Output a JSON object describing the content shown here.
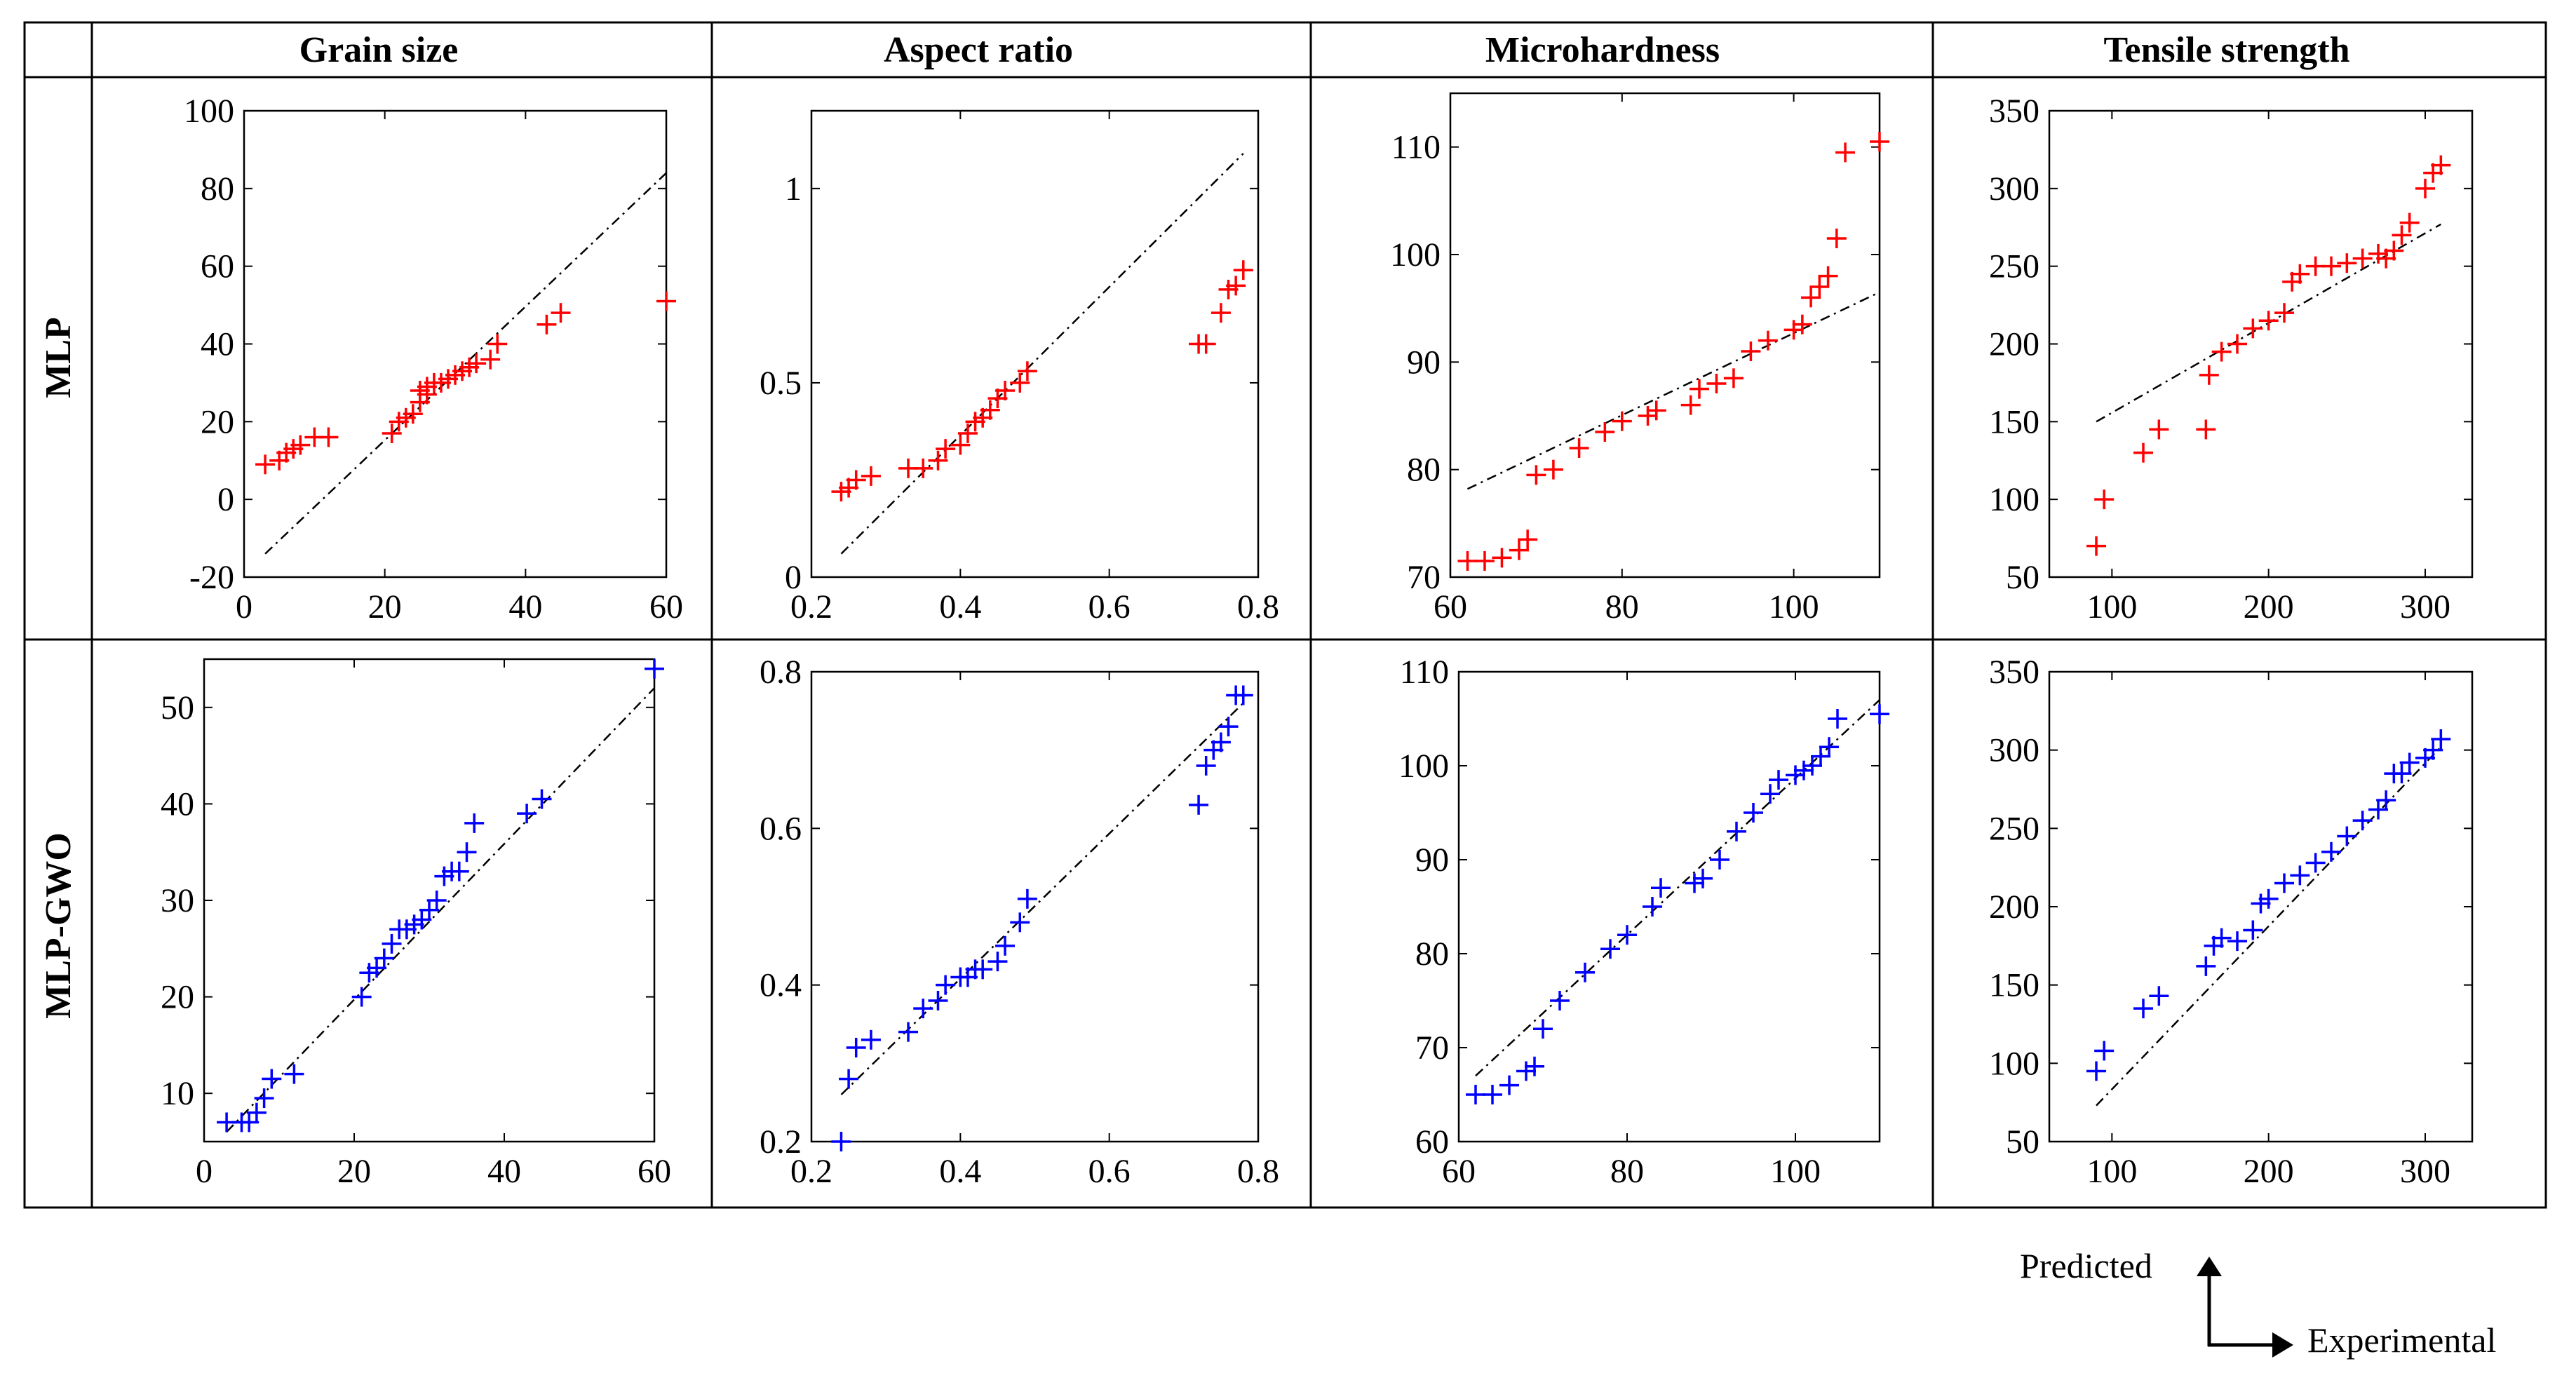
{
  "column_headers": [
    "Grain size",
    "Aspect ratio",
    "Microhardness",
    "Tensile strength"
  ],
  "row_labels": [
    "MLP",
    "MLP-GWO"
  ],
  "legend": {
    "y_label": "Predicted",
    "x_label": "Experimental"
  },
  "colors": {
    "MLP": "#ff0000",
    "MLP-GWO": "#0000ff",
    "line": "#000000"
  },
  "chart_data": [
    {
      "type": "scatter",
      "row": "MLP",
      "title": "Grain size",
      "xlabel": "Experimental",
      "ylabel": "Predicted",
      "xlim": [
        0,
        60
      ],
      "ylim": [
        -20,
        100
      ],
      "xticks": [
        0,
        20,
        40,
        60
      ],
      "yticks": [
        -20,
        0,
        20,
        40,
        60,
        80,
        100
      ],
      "x": [
        3,
        5,
        6,
        7,
        8,
        10,
        12,
        21,
        22,
        23,
        24,
        25,
        25,
        26,
        26,
        27,
        28,
        29,
        30,
        31,
        32,
        33,
        35,
        36,
        43,
        45,
        60
      ],
      "y": [
        9,
        10,
        12,
        13,
        14,
        16,
        16,
        17,
        20,
        21,
        22,
        25,
        28,
        27,
        29,
        30,
        30,
        31,
        32,
        33,
        34,
        35,
        36,
        40,
        45,
        48,
        51
      ],
      "fit_line": {
        "x": [
          3,
          60
        ],
        "y": [
          -14,
          84
        ]
      }
    },
    {
      "type": "scatter",
      "row": "MLP",
      "title": "Aspect ratio",
      "xlabel": "Experimental",
      "ylabel": "Predicted",
      "xlim": [
        0.2,
        0.8
      ],
      "ylim": [
        0,
        1.2
      ],
      "xticks": [
        0.2,
        0.4,
        0.6,
        0.8
      ],
      "yticks": [
        0,
        0.5,
        1
      ],
      "x": [
        0.24,
        0.25,
        0.26,
        0.28,
        0.33,
        0.35,
        0.37,
        0.38,
        0.4,
        0.41,
        0.42,
        0.43,
        0.44,
        0.45,
        0.46,
        0.48,
        0.49,
        0.72,
        0.73,
        0.75,
        0.76,
        0.77,
        0.78
      ],
      "y": [
        0.22,
        0.23,
        0.25,
        0.26,
        0.28,
        0.28,
        0.3,
        0.33,
        0.34,
        0.37,
        0.4,
        0.41,
        0.43,
        0.46,
        0.48,
        0.5,
        0.53,
        0.6,
        0.6,
        0.68,
        0.74,
        0.75,
        0.79
      ],
      "fit_line": {
        "x": [
          0.24,
          0.78
        ],
        "y": [
          0.06,
          1.09
        ]
      }
    },
    {
      "type": "scatter",
      "row": "MLP",
      "title": "Microhardness",
      "xlabel": "Experimental",
      "ylabel": "Predicted",
      "xlim": [
        60,
        110
      ],
      "ylim": [
        70,
        115
      ],
      "xticks": [
        60,
        80,
        100
      ],
      "yticks": [
        70,
        80,
        90,
        100,
        110
      ],
      "x": [
        62,
        64,
        66,
        68,
        69,
        70,
        72,
        75,
        78,
        80,
        83,
        84,
        88,
        89,
        91,
        93,
        95,
        97,
        100,
        101,
        102,
        103,
        104,
        105,
        106,
        110
      ],
      "y": [
        71.5,
        71.5,
        71.8,
        72.5,
        73.5,
        79.5,
        80.0,
        82.0,
        83.5,
        84.5,
        85.0,
        85.5,
        86.0,
        87.5,
        88.0,
        88.5,
        91.0,
        92.0,
        93.0,
        93.5,
        96.0,
        97.0,
        98.0,
        101.5,
        109.5,
        110.5
      ],
      "fit_line": {
        "x": [
          62,
          110
        ],
        "y": [
          78.2,
          96.5
        ]
      }
    },
    {
      "type": "scatter",
      "row": "MLP",
      "title": "Tensile strength",
      "xlabel": "Experimental",
      "ylabel": "Predicted",
      "xlim": [
        60,
        330
      ],
      "ylim": [
        50,
        350
      ],
      "xticks": [
        100,
        200,
        300
      ],
      "yticks": [
        50,
        100,
        150,
        200,
        250,
        300,
        350
      ],
      "x": [
        90,
        95,
        120,
        130,
        160,
        162,
        170,
        180,
        190,
        200,
        210,
        215,
        220,
        230,
        240,
        250,
        260,
        270,
        275,
        280,
        285,
        290,
        300,
        305,
        310
      ],
      "y": [
        70,
        100,
        130,
        145,
        145,
        180,
        195,
        200,
        210,
        215,
        220,
        240,
        245,
        250,
        250,
        252,
        255,
        258,
        255,
        260,
        270,
        278,
        300,
        310,
        315
      ],
      "fit_line": {
        "x": [
          90,
          310
        ],
        "y": [
          150,
          277
        ]
      }
    },
    {
      "type": "scatter",
      "row": "MLP-GWO",
      "title": "Grain size",
      "xlabel": "Experimental",
      "ylabel": "Predicted",
      "xlim": [
        0,
        60
      ],
      "ylim": [
        5,
        55
      ],
      "xticks": [
        0,
        20,
        40,
        60
      ],
      "yticks": [
        10,
        20,
        30,
        40,
        50
      ],
      "x": [
        3,
        5,
        6,
        7,
        8,
        9,
        12,
        21,
        22,
        23,
        24,
        25,
        26,
        27,
        28,
        29,
        30,
        31,
        32,
        33,
        34,
        35,
        36,
        43,
        45,
        60
      ],
      "y": [
        7,
        7,
        7,
        8,
        9.5,
        11.5,
        12,
        20,
        22.5,
        23,
        24,
        25.5,
        27,
        27,
        27.5,
        28,
        29,
        30,
        32.5,
        33,
        33,
        35,
        38,
        39,
        40.5,
        54
      ],
      "fit_line": {
        "x": [
          3,
          60
        ],
        "y": [
          6,
          52
        ]
      }
    },
    {
      "type": "scatter",
      "row": "MLP-GWO",
      "title": "Aspect ratio",
      "xlabel": "Experimental",
      "ylabel": "Predicted",
      "xlim": [
        0.2,
        0.8
      ],
      "ylim": [
        0.2,
        0.8
      ],
      "xticks": [
        0.2,
        0.4,
        0.6,
        0.8
      ],
      "yticks": [
        0.2,
        0.4,
        0.6,
        0.8
      ],
      "x": [
        0.24,
        0.25,
        0.26,
        0.28,
        0.33,
        0.35,
        0.37,
        0.38,
        0.4,
        0.41,
        0.42,
        0.43,
        0.45,
        0.46,
        0.48,
        0.49,
        0.72,
        0.73,
        0.74,
        0.75,
        0.76,
        0.77,
        0.78
      ],
      "y": [
        0.2,
        0.28,
        0.32,
        0.33,
        0.34,
        0.37,
        0.38,
        0.4,
        0.41,
        0.41,
        0.42,
        0.42,
        0.43,
        0.45,
        0.48,
        0.51,
        0.63,
        0.68,
        0.7,
        0.71,
        0.73,
        0.77,
        0.77
      ],
      "fit_line": {
        "x": [
          0.24,
          0.78
        ],
        "y": [
          0.26,
          0.76
        ]
      }
    },
    {
      "type": "scatter",
      "row": "MLP-GWO",
      "title": "Microhardness",
      "xlabel": "Experimental",
      "ylabel": "Predicted",
      "xlim": [
        60,
        110
      ],
      "ylim": [
        60,
        110
      ],
      "xticks": [
        60,
        80,
        100
      ],
      "yticks": [
        60,
        70,
        80,
        90,
        100,
        110
      ],
      "x": [
        62,
        64,
        66,
        68,
        69,
        70,
        72,
        75,
        78,
        80,
        83,
        84,
        88,
        89,
        91,
        93,
        95,
        97,
        98,
        100,
        101,
        102,
        103,
        104,
        105,
        110
      ],
      "y": [
        65,
        65,
        66,
        67.5,
        68,
        72,
        75,
        78,
        80.5,
        82,
        85,
        87,
        87.5,
        88,
        90,
        93,
        95,
        97,
        98.5,
        99,
        99.5,
        100,
        101,
        102,
        105,
        105.5
      ],
      "fit_line": {
        "x": [
          62,
          110
        ],
        "y": [
          67,
          107
        ]
      }
    },
    {
      "type": "scatter",
      "row": "MLP-GWO",
      "title": "Tensile strength",
      "xlabel": "Experimental",
      "ylabel": "Predicted",
      "xlim": [
        60,
        330
      ],
      "ylim": [
        50,
        350
      ],
      "xticks": [
        100,
        200,
        300
      ],
      "yticks": [
        50,
        100,
        150,
        200,
        250,
        300,
        350
      ],
      "x": [
        90,
        95,
        120,
        130,
        160,
        165,
        170,
        180,
        190,
        195,
        200,
        210,
        220,
        230,
        240,
        250,
        260,
        270,
        275,
        280,
        285,
        290,
        300,
        305,
        310
      ],
      "y": [
        95,
        108,
        135,
        143,
        162,
        175,
        180,
        178,
        185,
        202,
        205,
        215,
        220,
        228,
        235,
        245,
        255,
        262,
        268,
        285,
        285,
        292,
        295,
        300,
        307
      ],
      "fit_line": {
        "x": [
          90,
          310
        ],
        "y": [
          73,
          302
        ]
      }
    }
  ]
}
